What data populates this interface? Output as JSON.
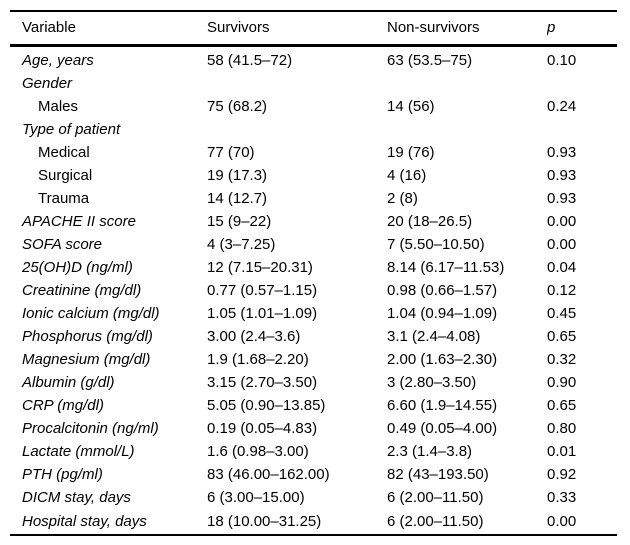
{
  "table": {
    "columns": [
      "Variable",
      "Survivors",
      "Non-survivors",
      "p"
    ],
    "rows": [
      {
        "variable": "Age, years",
        "survivors": "58 (41.5–72)",
        "nonsurvivors": "63 (53.5–75)",
        "p": "0.10",
        "indent": false
      },
      {
        "variable": "Gender",
        "survivors": "",
        "nonsurvivors": "",
        "p": "",
        "indent": false
      },
      {
        "variable": "Males",
        "survivors": "75 (68.2)",
        "nonsurvivors": "14 (56)",
        "p": "0.24",
        "indent": true
      },
      {
        "variable": "Type of patient",
        "survivors": "",
        "nonsurvivors": "",
        "p": "",
        "indent": false
      },
      {
        "variable": "Medical",
        "survivors": "77 (70)",
        "nonsurvivors": "19 (76)",
        "p": "0.93",
        "indent": true
      },
      {
        "variable": "Surgical",
        "survivors": "19 (17.3)",
        "nonsurvivors": "4 (16)",
        "p": "0.93",
        "indent": true
      },
      {
        "variable": "Trauma",
        "survivors": "14 (12.7)",
        "nonsurvivors": "2 (8)",
        "p": "0.93",
        "indent": true
      },
      {
        "variable": "APACHE II score",
        "survivors": "15 (9–22)",
        "nonsurvivors": "20 (18–26.5)",
        "p": "0.00",
        "indent": false
      },
      {
        "variable": "SOFA score",
        "survivors": "4 (3–7.25)",
        "nonsurvivors": "7 (5.50–10.50)",
        "p": "0.00",
        "indent": false
      },
      {
        "variable": "25(OH)D (ng/ml)",
        "survivors": "12 (7.15–20.31)",
        "nonsurvivors": "8.14 (6.17–11.53)",
        "p": "0.04",
        "indent": false
      },
      {
        "variable": "Creatinine (mg/dl)",
        "survivors": "0.77 (0.57–1.15)",
        "nonsurvivors": "0.98 (0.66–1.57)",
        "p": "0.12",
        "indent": false
      },
      {
        "variable": "Ionic calcium (mg/dl)",
        "survivors": "1.05 (1.01–1.09)",
        "nonsurvivors": "1.04 (0.94–1.09)",
        "p": "0.45",
        "indent": false
      },
      {
        "variable": "Phosphorus (mg/dl)",
        "survivors": "3.00 (2.4–3.6)",
        "nonsurvivors": "3.1 (2.4–4.08)",
        "p": "0.65",
        "indent": false
      },
      {
        "variable": "Magnesium (mg/dl)",
        "survivors": "1.9 (1.68–2.20)",
        "nonsurvivors": "2.00 (1.63–2.30)",
        "p": "0.32",
        "indent": false
      },
      {
        "variable": "Albumin (g/dl)",
        "survivors": "3.15 (2.70–3.50)",
        "nonsurvivors": "3 (2.80–3.50)",
        "p": "0.90",
        "indent": false
      },
      {
        "variable": "CRP (mg/dl)",
        "survivors": "5.05 (0.90–13.85)",
        "nonsurvivors": "6.60 (1.9–14.55)",
        "p": "0.65",
        "indent": false
      },
      {
        "variable": "Procalcitonin (ng/ml)",
        "survivors": "0.19 (0.05–4.83)",
        "nonsurvivors": "0.49 (0.05–4.00)",
        "p": "0.80",
        "indent": false
      },
      {
        "variable": "Lactate (mmol/L)",
        "survivors": "1.6 (0.98–3.00)",
        "nonsurvivors": "2.3 (1.4–3.8)",
        "p": "0.01",
        "indent": false
      },
      {
        "variable": "PTH (pg/ml)",
        "survivors": "83 (46.00–162.00)",
        "nonsurvivors": "82 (43–193.50)",
        "p": "0.92",
        "indent": false
      },
      {
        "variable": "DICM stay, days",
        "survivors": "6 (3.00–15.00)",
        "nonsurvivors": "6 (2.00–11.50)",
        "p": "0.33",
        "indent": false
      },
      {
        "variable": "Hospital stay, days",
        "survivors": "18 (10.00–31.25)",
        "nonsurvivors": "6 (2.00–11.50)",
        "p": "0.00",
        "indent": false
      }
    ]
  },
  "colors": {
    "background": "#ffffff",
    "text": "#000000",
    "rule": "#000000"
  }
}
